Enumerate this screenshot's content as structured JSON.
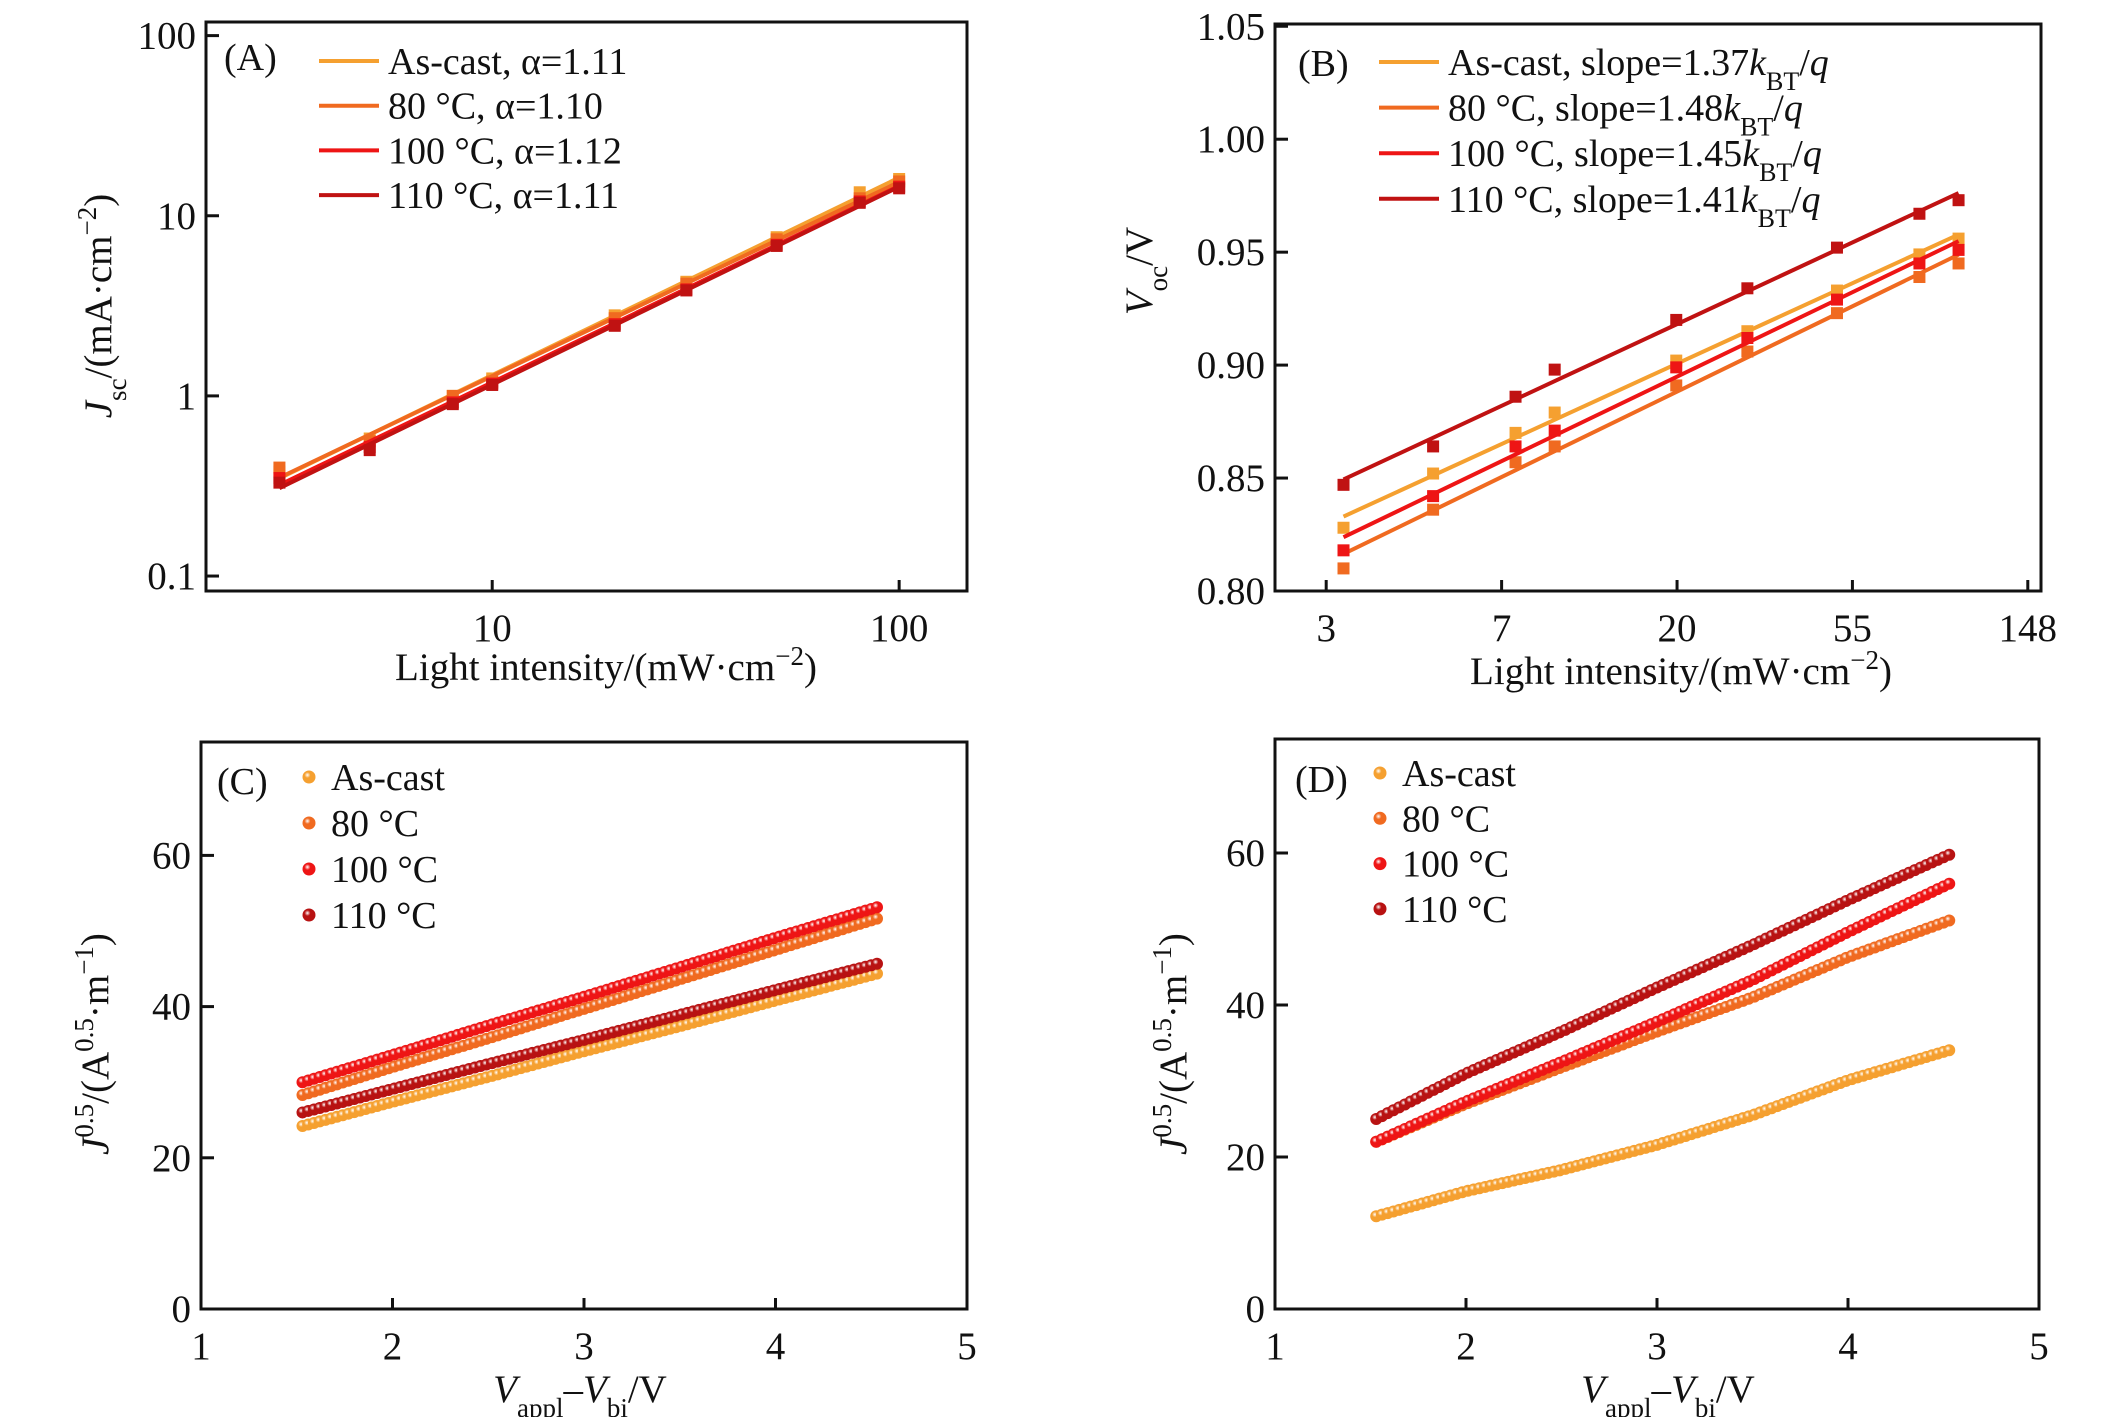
{
  "chart_data": [
    {
      "panel_label": "(A)",
      "type": "line",
      "xscale": "log",
      "yscale": "log",
      "xlim": [
        1.98,
        146.8
      ],
      "ylim": [
        0.0826,
        119
      ],
      "grid": false,
      "legend_placement": "top-left",
      "marker": "square",
      "x_ticks": [
        {
          "value": 10,
          "label": "10"
        },
        {
          "value": 100,
          "label": "100"
        }
      ],
      "y_ticks": [
        {
          "value": 0.1,
          "label": "0.1"
        },
        {
          "value": 1,
          "label": "1"
        },
        {
          "value": 10,
          "label": "10"
        },
        {
          "value": 100,
          "label": "100"
        }
      ],
      "xlabel": [
        "Light intensity/(mW·cm",
        "−2",
        ")"
      ],
      "ylabel": [
        "J",
        "sc",
        "/(mA·cm",
        "−2",
        ")"
      ],
      "series": [
        {
          "name": "As-cast",
          "legend": "As-cast, α=1.11",
          "color": "#F5A030",
          "x": [
            3,
            5,
            8,
            10,
            20,
            30,
            50,
            80,
            100
          ],
          "y": [
            0.38,
            0.58,
            1.0,
            1.25,
            2.8,
            4.3,
            7.6,
            13.5,
            16.0
          ]
        },
        {
          "name": "80 °C",
          "legend": "80 °C, α=1.10",
          "color": "#F06A20",
          "x": [
            3,
            5,
            8,
            10,
            20,
            30,
            50,
            80,
            100
          ],
          "y": [
            0.4,
            0.56,
            1.0,
            1.2,
            2.7,
            4.2,
            7.4,
            12.5,
            15.5
          ]
        },
        {
          "name": "100 °C",
          "legend": "100 °C, α=1.12",
          "color": "#EE1515",
          "x": [
            3,
            5,
            8,
            10,
            20,
            30,
            50,
            80,
            100
          ],
          "y": [
            0.35,
            0.52,
            0.92,
            1.17,
            2.5,
            3.9,
            6.9,
            12.0,
            14.5
          ]
        },
        {
          "name": "110 °C",
          "legend": "110 °C, α=1.11",
          "color": "#C01212",
          "x": [
            3,
            5,
            8,
            10,
            20,
            30,
            50,
            80,
            100
          ],
          "y": [
            0.33,
            0.5,
            0.9,
            1.15,
            2.45,
            3.85,
            6.8,
            11.8,
            14.2
          ]
        }
      ]
    },
    {
      "panel_label": "(B)",
      "type": "line",
      "xscale": "log",
      "yscale": "linear",
      "xlim": [
        2.03,
        160
      ],
      "ylim": [
        0.8,
        1.051
      ],
      "grid": false,
      "legend_placement": "top-left",
      "marker": "square",
      "x_ticks": [
        {
          "value": 2.718,
          "label": "3"
        },
        {
          "value": 7.389,
          "label": "7"
        },
        {
          "value": 20.09,
          "label": "20"
        },
        {
          "value": 54.6,
          "label": "55"
        },
        {
          "value": 148.4,
          "label": "148"
        }
      ],
      "y_ticks": [
        {
          "value": 0.8,
          "label": "0.80"
        },
        {
          "value": 0.85,
          "label": "0.85"
        },
        {
          "value": 0.9,
          "label": "0.90"
        },
        {
          "value": 0.95,
          "label": "0.95"
        },
        {
          "value": 1.0,
          "label": "1.00"
        },
        {
          "value": 1.05,
          "label": "1.05"
        }
      ],
      "xlabel": [
        "Light intensity/(mW·cm",
        "−2",
        ")"
      ],
      "ylabel": [
        "V",
        "oc",
        "/V"
      ],
      "legend_unit": [
        "k",
        "BT",
        "/",
        "q"
      ],
      "series": [
        {
          "name": "As-cast",
          "legend": "As-cast, slope=1.37",
          "color": "#F5A030",
          "x": [
            3,
            5,
            8,
            10,
            20,
            30,
            50,
            80,
            100
          ],
          "y": [
            0.828,
            0.852,
            0.87,
            0.879,
            0.902,
            0.915,
            0.933,
            0.949,
            0.956
          ]
        },
        {
          "name": "80 °C",
          "legend": "80 °C, slope=1.48",
          "color": "#F06A20",
          "x": [
            3,
            5,
            8,
            10,
            20,
            30,
            50,
            80,
            100
          ],
          "y": [
            0.81,
            0.836,
            0.857,
            0.864,
            0.891,
            0.906,
            0.923,
            0.939,
            0.945
          ]
        },
        {
          "name": "100 °C",
          "legend": "100 °C, slope=1.45",
          "color": "#EE1515",
          "x": [
            3,
            5,
            8,
            10,
            20,
            30,
            50,
            80,
            100
          ],
          "y": [
            0.818,
            0.842,
            0.864,
            0.871,
            0.899,
            0.912,
            0.929,
            0.945,
            0.951
          ]
        },
        {
          "name": "110 °C",
          "legend": "110 °C, slope=1.41",
          "color": "#C01212",
          "x": [
            3,
            5,
            8,
            10,
            20,
            30,
            50,
            80,
            100
          ],
          "y": [
            0.847,
            0.864,
            0.886,
            0.898,
            0.92,
            0.934,
            0.952,
            0.967,
            0.973
          ]
        }
      ]
    },
    {
      "panel_label": "(C)",
      "type": "scatter",
      "xscale": "linear",
      "yscale": "linear",
      "xlim": [
        1,
        5
      ],
      "ylim": [
        0,
        75
      ],
      "grid": false,
      "legend_placement": "top-left",
      "marker": "circle",
      "x_ticks": [
        {
          "value": 1,
          "label": "1"
        },
        {
          "value": 2,
          "label": "2"
        },
        {
          "value": 3,
          "label": "3"
        },
        {
          "value": 4,
          "label": "4"
        },
        {
          "value": 5,
          "label": "5"
        }
      ],
      "y_ticks": [
        {
          "value": 0,
          "label": "0"
        },
        {
          "value": 20,
          "label": "20"
        },
        {
          "value": 40,
          "label": "40"
        },
        {
          "value": 60,
          "label": "60"
        }
      ],
      "xlabel": [
        "V",
        "appl",
        "–",
        "V",
        "bi",
        "/V"
      ],
      "ylabel": [
        "J",
        "0.5",
        "/(A",
        "0.5",
        "·m",
        "−1",
        ")"
      ],
      "series": [
        {
          "name": "As-cast",
          "legend": "As-cast",
          "color": "#F5A030",
          "x": [
            1.53,
            2,
            2.5,
            3,
            3.5,
            4,
            4.55
          ],
          "y": [
            24.2,
            27.4,
            30.7,
            34.1,
            37.4,
            40.8,
            44.5
          ]
        },
        {
          "name": "80 °C",
          "legend": "80 °C",
          "color": "#F06A20",
          "x": [
            1.53,
            2,
            2.5,
            3,
            3.5,
            4,
            4.55
          ],
          "y": [
            28.3,
            32.0,
            35.8,
            39.7,
            43.6,
            47.5,
            51.8
          ]
        },
        {
          "name": "100 °C",
          "legend": "100 °C",
          "color": "#EE1515",
          "x": [
            1.53,
            2,
            2.5,
            3,
            3.5,
            4,
            4.55
          ],
          "y": [
            30.0,
            33.6,
            37.5,
            41.3,
            45.2,
            49.1,
            53.3
          ]
        },
        {
          "name": "110 °C",
          "legend": "110 °C",
          "color": "#B81212",
          "x": [
            1.53,
            2,
            2.5,
            3,
            3.5,
            4,
            4.55
          ],
          "y": [
            26.0,
            29.1,
            32.4,
            35.6,
            38.9,
            42.2,
            45.8
          ]
        }
      ]
    },
    {
      "panel_label": "(D)",
      "type": "scatter",
      "xscale": "linear",
      "yscale": "linear",
      "xlim": [
        1,
        5
      ],
      "ylim": [
        0,
        75
      ],
      "grid": false,
      "legend_placement": "top-left",
      "marker": "circle",
      "x_ticks": [
        {
          "value": 1,
          "label": "1"
        },
        {
          "value": 2,
          "label": "2"
        },
        {
          "value": 3,
          "label": "3"
        },
        {
          "value": 4,
          "label": "4"
        },
        {
          "value": 5,
          "label": "5"
        }
      ],
      "y_ticks": [
        {
          "value": 0,
          "label": "0"
        },
        {
          "value": 20,
          "label": "20"
        },
        {
          "value": 40,
          "label": "40"
        },
        {
          "value": 60,
          "label": "60"
        }
      ],
      "xlabel": [
        "V",
        "appl",
        "–",
        "V",
        "bi",
        "/V"
      ],
      "ylabel": [
        "J",
        "0.5",
        "/(A",
        "0.5",
        "·m",
        "−1",
        ")"
      ],
      "series": [
        {
          "name": "As-cast",
          "legend": "As-cast",
          "color": "#F5A030",
          "x": [
            1.53,
            2,
            2.5,
            3,
            3.5,
            4,
            4.55
          ],
          "y": [
            12.2,
            15.5,
            18.3,
            21.6,
            25.5,
            30.1,
            34.2
          ]
        },
        {
          "name": "80 °C",
          "legend": "80 °C",
          "color": "#F06A20",
          "x": [
            1.53,
            2,
            2.5,
            3,
            3.5,
            4,
            4.55
          ],
          "y": [
            22.0,
            27.0,
            31.8,
            36.5,
            41.0,
            46.3,
            51.3
          ]
        },
        {
          "name": "100 °C",
          "legend": "100 °C",
          "color": "#EE1515",
          "x": [
            1.53,
            2,
            2.5,
            3,
            3.5,
            4,
            4.55
          ],
          "y": [
            22.0,
            27.3,
            32.5,
            37.8,
            43.3,
            49.6,
            56.2
          ]
        },
        {
          "name": "110 °C",
          "legend": "110 °C",
          "color": "#B81212",
          "x": [
            1.53,
            2,
            2.5,
            3,
            3.5,
            4,
            4.55
          ],
          "y": [
            25.0,
            31.0,
            36.5,
            42.3,
            47.9,
            53.8,
            60.0
          ]
        }
      ]
    }
  ]
}
